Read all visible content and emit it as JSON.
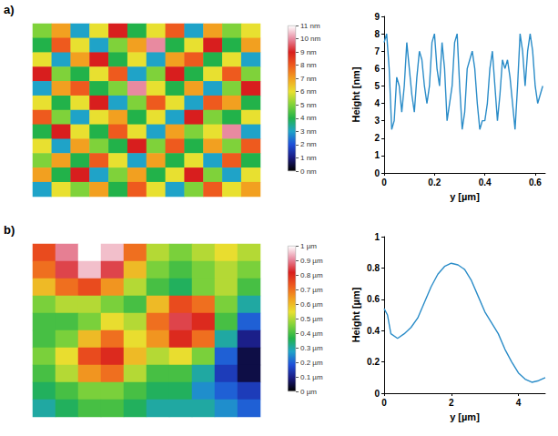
{
  "chart_data": [
    {
      "type": "heatmap",
      "panel": "a)",
      "tick_labels": false,
      "cells": [
        [
          5,
          7,
          3,
          6,
          9,
          4,
          6,
          8,
          3,
          7,
          5,
          6
        ],
        [
          4,
          8,
          6,
          3,
          5,
          7,
          10,
          4,
          6,
          9,
          4,
          7
        ],
        [
          6,
          3,
          7,
          9,
          4,
          6,
          3,
          7,
          8,
          4,
          6,
          3
        ],
        [
          9,
          5,
          4,
          6,
          8,
          3,
          5,
          9,
          4,
          6,
          8,
          5
        ],
        [
          3,
          7,
          8,
          4,
          5,
          10,
          6,
          4,
          7,
          3,
          5,
          9
        ],
        [
          6,
          4,
          6,
          9,
          3,
          5,
          8,
          6,
          3,
          8,
          7,
          4
        ],
        [
          8,
          5,
          3,
          6,
          7,
          4,
          6,
          3,
          9,
          5,
          4,
          6
        ],
        [
          4,
          9,
          6,
          4,
          8,
          6,
          3,
          7,
          5,
          6,
          10,
          3
        ],
        [
          6,
          3,
          7,
          5,
          4,
          9,
          5,
          8,
          4,
          7,
          5,
          8
        ],
        [
          5,
          7,
          4,
          8,
          6,
          3,
          7,
          4,
          6,
          3,
          8,
          4
        ],
        [
          7,
          4,
          9,
          3,
          5,
          7,
          4,
          6,
          9,
          5,
          3,
          6
        ],
        [
          3,
          6,
          5,
          7,
          4,
          8,
          6,
          3,
          5,
          8,
          6,
          7
        ]
      ],
      "colorbar": {
        "range": [
          0,
          11
        ],
        "ticks": [
          {
            "value": 0,
            "label": "0 nm"
          },
          {
            "value": 1,
            "label": "1 nm"
          },
          {
            "value": 2,
            "label": "2 nm"
          },
          {
            "value": 3,
            "label": "3 nm"
          },
          {
            "value": 4,
            "label": "4 nm"
          },
          {
            "value": 5,
            "label": "5 nm"
          },
          {
            "value": 6,
            "label": "6 nm"
          },
          {
            "value": 7,
            "label": "7 nm"
          },
          {
            "value": 8,
            "label": "8 nm"
          },
          {
            "value": 9,
            "label": "9 nm"
          },
          {
            "value": 10,
            "label": "10 nm"
          },
          {
            "value": 11,
            "label": "11 nm"
          }
        ],
        "colors": [
          "#000000",
          "#1a1a80",
          "#1f4fd8",
          "#1fa3c8",
          "#22b24a",
          "#7fd23a",
          "#e8e030",
          "#f2a020",
          "#ee5a1e",
          "#d81e1e",
          "#e88aa0",
          "#ffffff"
        ]
      }
    },
    {
      "type": "line",
      "xlabel": "y [µm]",
      "ylabel": "Height [nm]",
      "color": "#2a8cc8",
      "grid": false,
      "xlim": [
        0,
        0.64
      ],
      "xticks": [
        0,
        0.2,
        0.4,
        0.6
      ],
      "ylim": [
        0,
        9
      ],
      "yticks": [
        0,
        1,
        2,
        3,
        4,
        5,
        6,
        7,
        8,
        9
      ],
      "x": [
        0,
        0.01,
        0.02,
        0.03,
        0.04,
        0.05,
        0.06,
        0.07,
        0.08,
        0.09,
        0.1,
        0.11,
        0.12,
        0.13,
        0.14,
        0.15,
        0.16,
        0.17,
        0.18,
        0.19,
        0.2,
        0.21,
        0.22,
        0.23,
        0.24,
        0.25,
        0.26,
        0.27,
        0.28,
        0.29,
        0.3,
        0.31,
        0.32,
        0.33,
        0.34,
        0.35,
        0.36,
        0.37,
        0.38,
        0.39,
        0.4,
        0.41,
        0.42,
        0.43,
        0.44,
        0.45,
        0.46,
        0.47,
        0.48,
        0.49,
        0.5,
        0.51,
        0.52,
        0.53,
        0.54,
        0.55,
        0.56,
        0.57,
        0.58,
        0.59,
        0.6,
        0.61,
        0.62,
        0.63
      ],
      "values": [
        7.5,
        8,
        6,
        2.5,
        3,
        5.5,
        5,
        3.5,
        5,
        7.5,
        6,
        4.5,
        3.5,
        5.5,
        7,
        6.5,
        5,
        4,
        5,
        7.5,
        8,
        6,
        5,
        7.5,
        6,
        3,
        4,
        5,
        7.5,
        8,
        5,
        2.5,
        3.5,
        6,
        6.5,
        7,
        6,
        4,
        2.5,
        3,
        3,
        4,
        6,
        7,
        5,
        3,
        4.5,
        6.5,
        6,
        6.5,
        5.5,
        4,
        2.5,
        5,
        8,
        7,
        5,
        7,
        8,
        7,
        5,
        4,
        4.5,
        5
      ]
    },
    {
      "type": "heatmap",
      "panel": "b)",
      "tick_labels": false,
      "cells": [
        [
          0.75,
          0.9,
          1.0,
          0.95,
          0.7,
          0.5,
          0.45,
          0.5,
          0.55,
          0.5
        ],
        [
          0.7,
          0.85,
          0.95,
          0.85,
          0.6,
          0.45,
          0.4,
          0.45,
          0.5,
          0.45
        ],
        [
          0.6,
          0.7,
          0.75,
          0.65,
          0.5,
          0.4,
          0.35,
          0.45,
          0.5,
          0.4
        ],
        [
          0.45,
          0.5,
          0.5,
          0.45,
          0.4,
          0.6,
          0.75,
          0.7,
          0.45,
          0.3
        ],
        [
          0.4,
          0.4,
          0.45,
          0.55,
          0.5,
          0.7,
          0.85,
          0.8,
          0.4,
          0.2
        ],
        [
          0.4,
          0.45,
          0.6,
          0.7,
          0.55,
          0.65,
          0.8,
          0.7,
          0.3,
          0.1
        ],
        [
          0.45,
          0.55,
          0.75,
          0.8,
          0.6,
          0.5,
          0.55,
          0.45,
          0.2,
          0.05
        ],
        [
          0.4,
          0.5,
          0.65,
          0.7,
          0.5,
          0.4,
          0.4,
          0.3,
          0.15,
          0.05
        ],
        [
          0.35,
          0.4,
          0.45,
          0.45,
          0.4,
          0.35,
          0.35,
          0.25,
          0.2,
          0.15
        ],
        [
          0.3,
          0.35,
          0.4,
          0.4,
          0.35,
          0.3,
          0.3,
          0.3,
          0.25,
          0.2
        ]
      ],
      "colorbar": {
        "range": [
          0,
          1
        ],
        "ticks": [
          {
            "value": 0,
            "label": "0 µm"
          },
          {
            "value": 0.1,
            "label": "0.1 µm"
          },
          {
            "value": 0.2,
            "label": "0.2 µm"
          },
          {
            "value": 0.3,
            "label": "0.3 µm"
          },
          {
            "value": 0.4,
            "label": "0.4 µm"
          },
          {
            "value": 0.5,
            "label": "0.5 µm"
          },
          {
            "value": 0.6,
            "label": "0.6 µm"
          },
          {
            "value": 0.7,
            "label": "0.7 µm"
          },
          {
            "value": 0.8,
            "label": "0.8 µm"
          },
          {
            "value": 0.9,
            "label": "0.9 µm"
          },
          {
            "value": 1,
            "label": "1 µm"
          }
        ],
        "colors": [
          "#000000",
          "#1a1a80",
          "#1f4fd8",
          "#1fa3c8",
          "#22b24a",
          "#7fd23a",
          "#e8e030",
          "#f2a020",
          "#ee5a1e",
          "#d81e1e",
          "#e88aa0",
          "#ffffff"
        ]
      }
    },
    {
      "type": "line",
      "xlabel": "y [µm]",
      "ylabel": "Height [µm]",
      "color": "#2a8cc8",
      "grid": false,
      "xlim": [
        0,
        4.8
      ],
      "xticks": [
        0,
        2,
        4
      ],
      "ylim": [
        0,
        1
      ],
      "yticks": [
        0,
        0.2,
        0.4,
        0.6,
        0.8,
        1
      ],
      "x": [
        0,
        0.1,
        0.2,
        0.4,
        0.6,
        0.8,
        1.0,
        1.2,
        1.4,
        1.6,
        1.8,
        2.0,
        2.2,
        2.4,
        2.6,
        2.8,
        3.0,
        3.2,
        3.4,
        3.6,
        3.8,
        4.0,
        4.2,
        4.4,
        4.6,
        4.8
      ],
      "values": [
        0.54,
        0.5,
        0.38,
        0.35,
        0.38,
        0.42,
        0.48,
        0.58,
        0.68,
        0.76,
        0.81,
        0.83,
        0.82,
        0.79,
        0.72,
        0.62,
        0.52,
        0.45,
        0.38,
        0.28,
        0.2,
        0.13,
        0.09,
        0.07,
        0.08,
        0.1
      ]
    }
  ]
}
